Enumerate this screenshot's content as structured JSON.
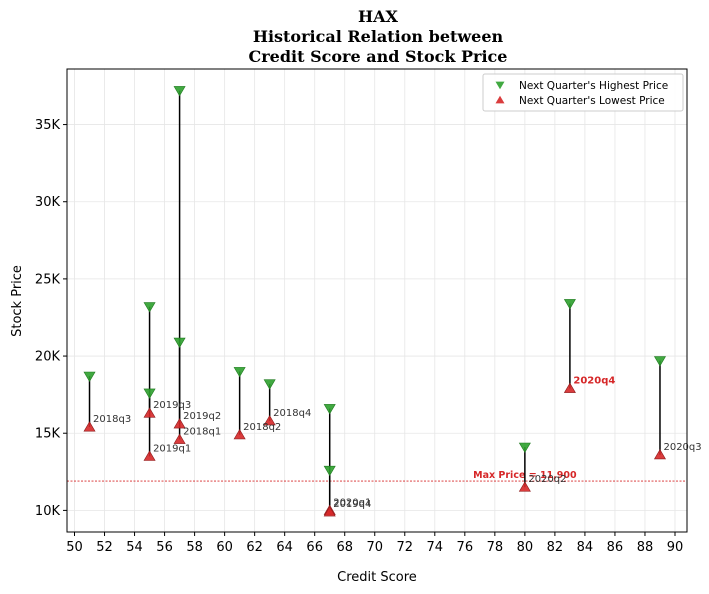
{
  "chart_data": {
    "type": "scatter",
    "title_lines": [
      "HAX",
      "Historical Relation between",
      "Credit Score and Stock Price"
    ],
    "xlabel": "Credit Score",
    "ylabel": "Stock Price",
    "xlim": [
      49.5,
      90.8
    ],
    "ylim": [
      8600,
      38600
    ],
    "xticks": [
      50,
      52,
      54,
      56,
      58,
      60,
      62,
      64,
      66,
      68,
      70,
      72,
      74,
      76,
      78,
      80,
      82,
      84,
      86,
      88,
      90
    ],
    "yticks": [
      {
        "value": 10000,
        "label": "10K"
      },
      {
        "value": 15000,
        "label": "15K"
      },
      {
        "value": 20000,
        "label": "20K"
      },
      {
        "value": 25000,
        "label": "25K"
      },
      {
        "value": 30000,
        "label": "30K"
      },
      {
        "value": 35000,
        "label": "35K"
      }
    ],
    "grid": true,
    "legend": {
      "placement": "top-right",
      "entries": [
        {
          "name": "Next Quarter's Highest Price",
          "marker": "triangle-down",
          "color": "#2ca02c"
        },
        {
          "name": "Next Quarter's Lowest Price",
          "marker": "triangle-up",
          "color": "#d62728"
        }
      ]
    },
    "reference_line": {
      "y": 11900,
      "label": "Max Price = 11,900",
      "color": "#d62728"
    },
    "points": [
      {
        "x": 51,
        "high": 18700,
        "low": 15400,
        "label": "2018q3",
        "highlight": false
      },
      {
        "x": 55,
        "high": 23200,
        "low": 16300,
        "label": "2019q3",
        "highlight": false
      },
      {
        "x": 55,
        "high": 17600,
        "low": 13500,
        "label": "2019q1",
        "highlight": false
      },
      {
        "x": 57,
        "high": 37200,
        "low": 15600,
        "label": "2019q2",
        "highlight": false
      },
      {
        "x": 57,
        "high": 20900,
        "low": 14600,
        "label": "2018q1",
        "highlight": false
      },
      {
        "x": 61,
        "high": 19000,
        "low": 14900,
        "label": "2018q2",
        "highlight": false
      },
      {
        "x": 63,
        "high": 18200,
        "low": 15800,
        "label": "2018q4",
        "highlight": false
      },
      {
        "x": 67,
        "high": 16600,
        "low": 10000,
        "label": "2020q1",
        "highlight": false
      },
      {
        "x": 67,
        "high": 12600,
        "low": 9900,
        "label": "2019q4",
        "highlight": false
      },
      {
        "x": 80,
        "high": 14100,
        "low": 11500,
        "label": "2020q2",
        "highlight": false
      },
      {
        "x": 83,
        "high": 23400,
        "low": 17900,
        "label": "2020q4",
        "highlight": true
      },
      {
        "x": 89,
        "high": 19700,
        "low": 13600,
        "label": "2020q3",
        "highlight": false
      }
    ]
  }
}
